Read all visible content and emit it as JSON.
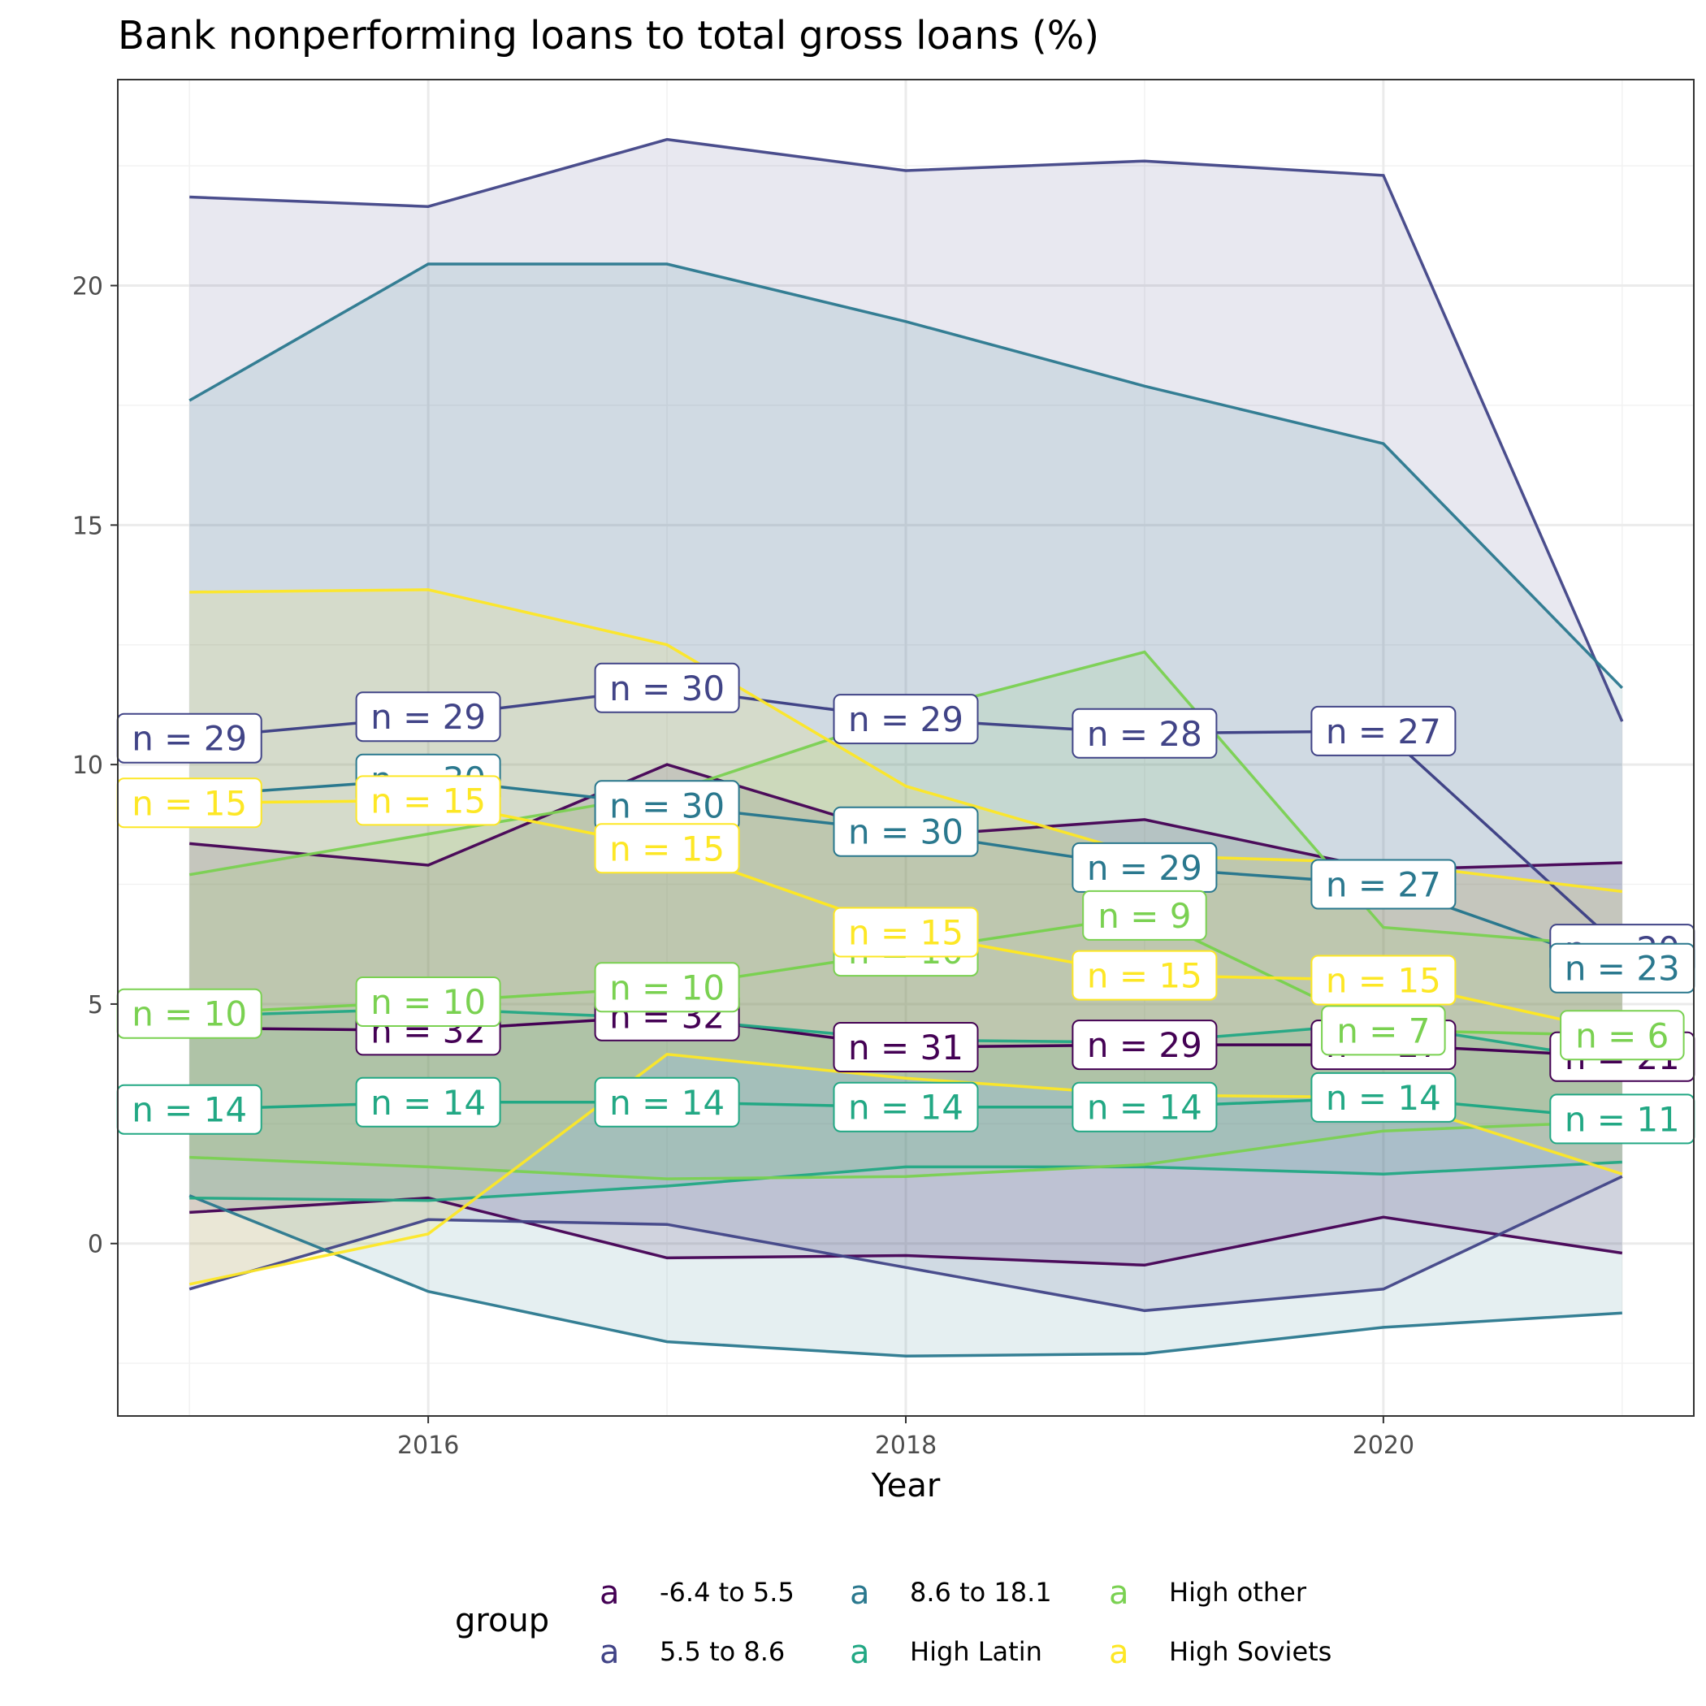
{
  "chart_data": {
    "type": "line",
    "title": "Bank nonperforming loans to total gross loans (%)",
    "xlabel": "Year",
    "ylabel": "",
    "xlim": [
      2014.7,
      2021.3
    ],
    "ylim": [
      -3.6,
      24.3
    ],
    "x_ticks": [
      2016,
      2018,
      2020
    ],
    "y_ticks": [
      0,
      5,
      10,
      15,
      20
    ],
    "grid": true,
    "legend_title": "group",
    "legend_position": "bottom",
    "x": [
      2015,
      2016,
      2017,
      2018,
      2019,
      2020,
      2021
    ],
    "series": [
      {
        "name": "-6.4 to 5.5",
        "color": "#440154",
        "mean": [
          4.5,
          4.45,
          4.75,
          4.1,
          4.15,
          4.15,
          3.9
        ],
        "upper": [
          8.35,
          7.9,
          10.0,
          8.5,
          8.85,
          7.8,
          7.95
        ],
        "lower": [
          0.65,
          0.95,
          -0.3,
          -0.25,
          -0.45,
          0.55,
          -0.2
        ],
        "n": [
          null,
          32,
          32,
          31,
          29,
          27,
          21
        ]
      },
      {
        "name": "5.5 to 8.6",
        "color": "#414487",
        "mean": [
          10.55,
          11.0,
          11.6,
          10.95,
          10.65,
          10.7,
          6.15
        ],
        "upper": [
          21.85,
          21.65,
          23.05,
          22.4,
          22.6,
          22.3,
          10.9
        ],
        "lower": [
          -0.95,
          0.5,
          0.4,
          -0.5,
          -1.4,
          -0.95,
          1.4
        ],
        "n": [
          29,
          29,
          30,
          29,
          28,
          27,
          20
        ]
      },
      {
        "name": "8.6 to 18.1",
        "color": "#2A788E",
        "mean": [
          9.35,
          9.7,
          9.15,
          8.6,
          7.85,
          7.5,
          5.75
        ],
        "upper": [
          17.6,
          20.45,
          20.45,
          19.25,
          17.9,
          16.7,
          11.6
        ],
        "lower": [
          1.0,
          -1.0,
          -2.05,
          -2.35,
          -2.3,
          -1.75,
          -1.45
        ],
        "n": [
          null,
          30,
          30,
          30,
          29,
          27,
          23
        ]
      },
      {
        "name": "High Latin",
        "color": "#22A884",
        "mean": [
          2.8,
          2.95,
          2.95,
          2.85,
          2.85,
          3.05,
          2.6
        ],
        "upper": [
          4.75,
          4.9,
          4.7,
          4.25,
          4.2,
          4.6,
          3.8
        ],
        "lower": [
          0.95,
          0.9,
          1.2,
          1.6,
          1.6,
          1.45,
          1.7
        ],
        "n": [
          14,
          14,
          14,
          14,
          14,
          14,
          11
        ]
      },
      {
        "name": "High other",
        "color": "#7AD151",
        "mean": [
          4.8,
          5.05,
          5.35,
          6.1,
          6.85,
          4.45,
          4.35
        ],
        "upper": [
          7.7,
          8.55,
          9.4,
          11.05,
          12.35,
          6.6,
          6.2
        ],
        "lower": [
          1.8,
          1.6,
          1.35,
          1.4,
          1.65,
          2.35,
          2.55
        ],
        "n": [
          10,
          10,
          10,
          10,
          9,
          7,
          6
        ]
      },
      {
        "name": "High Soviets",
        "color": "#FDE725",
        "mean": [
          9.2,
          9.25,
          8.25,
          6.5,
          5.6,
          5.5,
          4.4
        ],
        "upper": [
          13.6,
          13.65,
          12.5,
          9.55,
          8.1,
          7.95,
          7.35
        ],
        "lower": [
          -0.85,
          0.2,
          3.95,
          3.45,
          3.1,
          3.05,
          1.45
        ],
        "n": [
          15,
          15,
          15,
          15,
          15,
          15,
          null
        ]
      }
    ]
  }
}
